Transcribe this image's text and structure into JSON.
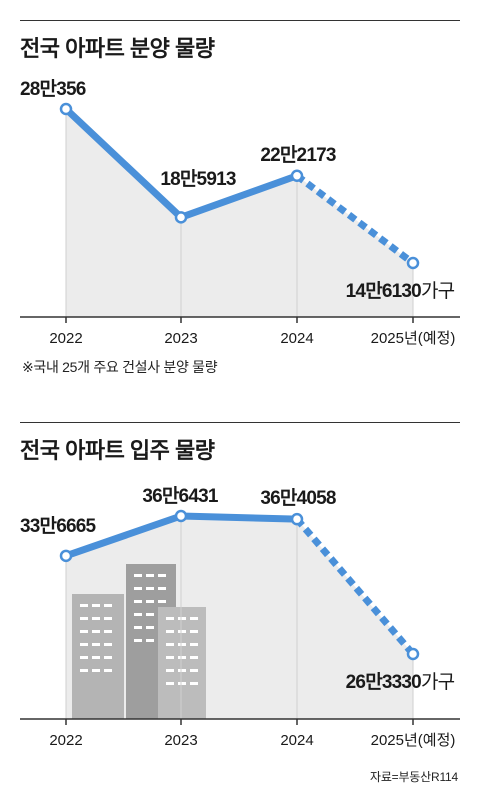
{
  "charts": [
    {
      "title": "전국 아파트 분양 물량",
      "footnote": "※국내 25개 주요 건설사 분양 물량",
      "series_color": "#4a90d9",
      "area_color": "#ececec",
      "chart_data": {
        "type": "line",
        "title": "전국 아파트 분양 물량",
        "x": [
          "2022",
          "2023",
          "2024",
          "2025년(예정)"
        ],
        "values": [
          280356,
          185913,
          222173,
          146130
        ],
        "value_labels": [
          "28만356",
          "18만5913",
          "22만2173",
          "14만6130"
        ],
        "unit": "가구",
        "projected_from_index": 2
      }
    },
    {
      "title": "전국 아파트 입주 물량",
      "source": "자료=부동산R114",
      "series_color": "#4a90d9",
      "area_color": "#ececec",
      "chart_data": {
        "type": "line",
        "title": "전국 아파트 입주 물량",
        "x": [
          "2022",
          "2023",
          "2024",
          "2025년(예정)"
        ],
        "values": [
          336665,
          366431,
          364058,
          263330
        ],
        "value_labels": [
          "33만6665",
          "36만6431",
          "36만4058",
          "26만3330"
        ],
        "unit": "가구",
        "projected_from_index": 2
      }
    }
  ]
}
